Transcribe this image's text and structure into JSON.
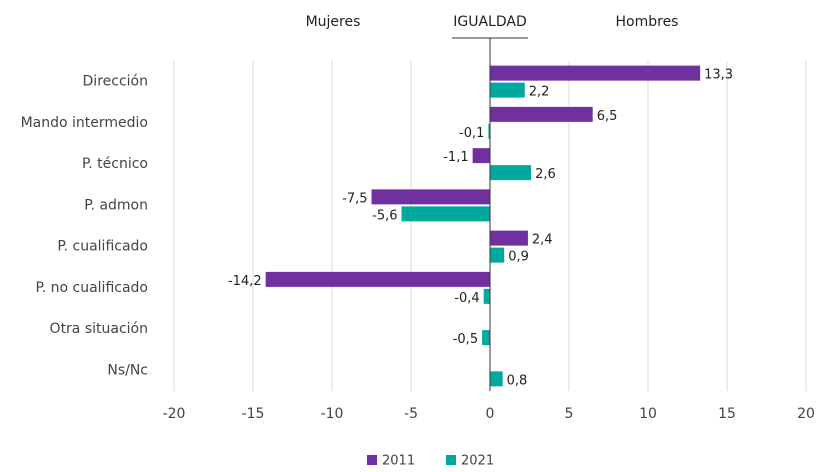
{
  "chart_data": {
    "type": "bar",
    "orientation": "horizontal",
    "annotations": [
      "Mujeres",
      "IGUALDAD",
      "Hombres"
    ],
    "categories": [
      "Dirección",
      "Mando intermedio",
      "P. técnico",
      "P. admon",
      "P. cualificado",
      "P. no cualificado",
      "Otra situación",
      "Ns/Nc"
    ],
    "series": [
      {
        "name": "2011",
        "color": "#7030a0",
        "values": [
          13.3,
          6.5,
          -1.1,
          -7.5,
          2.4,
          -14.2,
          null,
          null
        ],
        "value_labels": [
          "13,3",
          "6,5",
          "-1,1",
          "-7,5",
          "2,4",
          "-14,2",
          null,
          null
        ]
      },
      {
        "name": "2021",
        "color": "#00a99d",
        "values": [
          2.2,
          -0.1,
          2.6,
          -5.6,
          0.9,
          -0.4,
          -0.5,
          0.8
        ],
        "value_labels": [
          "2,2",
          "-0,1",
          "2,6",
          "-5,6",
          "0,9",
          "-0,4",
          "-0,5",
          "0,8"
        ]
      }
    ],
    "xlim": [
      -20,
      20
    ],
    "xticks": [
      -20,
      -15,
      -10,
      -5,
      0,
      5,
      10,
      15,
      20
    ],
    "grid": true,
    "legend": "bottom"
  }
}
